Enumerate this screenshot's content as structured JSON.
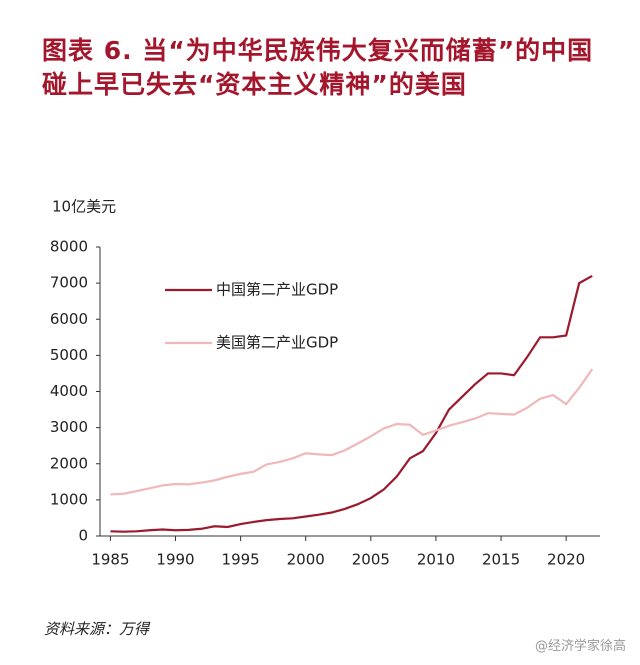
{
  "chart_data": {
    "type": "line",
    "title": "图表 6.  当“为中华民族伟大复兴而储蓄”的中国碰上早已失去“资本主义精神”的美国",
    "y_unit": "10亿美元",
    "x": [
      1985,
      1986,
      1987,
      1988,
      1989,
      1990,
      1991,
      1992,
      1993,
      1994,
      1995,
      1996,
      1997,
      1998,
      1999,
      2000,
      2001,
      2002,
      2003,
      2004,
      2005,
      2006,
      2007,
      2008,
      2009,
      2010,
      2011,
      2012,
      2013,
      2014,
      2015,
      2016,
      2017,
      2018,
      2019,
      2020,
      2021,
      2022
    ],
    "series": [
      {
        "name": "中国第二产业GDP",
        "color": "#9b1a2e",
        "values": [
          130,
          120,
          130,
          160,
          180,
          160,
          170,
          200,
          270,
          250,
          330,
          390,
          440,
          470,
          490,
          540,
          590,
          650,
          750,
          880,
          1050,
          1290,
          1650,
          2150,
          2350,
          2850,
          3500,
          3850,
          4200,
          4500,
          4500,
          4450,
          4950,
          5500,
          5500,
          5550,
          7000,
          7200
        ]
      },
      {
        "name": "美国第二产业GDP",
        "color": "#f0b8b8",
        "values": [
          1150,
          1170,
          1240,
          1320,
          1400,
          1440,
          1430,
          1480,
          1540,
          1640,
          1720,
          1780,
          1980,
          2050,
          2150,
          2290,
          2260,
          2240,
          2370,
          2560,
          2760,
          2980,
          3100,
          3080,
          2800,
          2920,
          3050,
          3150,
          3250,
          3400,
          3380,
          3360,
          3550,
          3800,
          3900,
          3650,
          4100,
          4620
        ]
      }
    ],
    "xlim": [
      1984.2,
      2022.6
    ],
    "xticks": [
      1985,
      1990,
      1995,
      2000,
      2005,
      2010,
      2015,
      2020
    ],
    "ylim": [
      0,
      8000
    ],
    "yticks": [
      0,
      1000,
      2000,
      3000,
      4000,
      5000,
      6000,
      7000,
      8000
    ],
    "source": "资料来源：万得",
    "watermark": "@经济学家徐高"
  }
}
